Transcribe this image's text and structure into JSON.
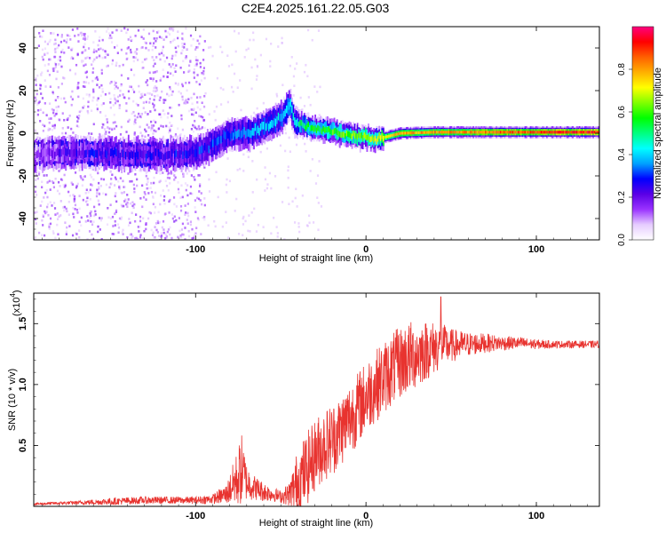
{
  "title": "C2E4.2025.161.22.05.G03",
  "chart_data": [
    {
      "type": "heatmap",
      "xlabel": "Height of straight line (km)",
      "ylabel": "Frequency (Hz)",
      "xlim": [
        -195,
        137
      ],
      "ylim": [
        -50,
        50
      ],
      "x_ticks": [
        -100,
        0,
        100
      ],
      "x_tick_labels": [
        "-100",
        "0",
        "100"
      ],
      "y_ticks": [
        -40,
        -20,
        0,
        20,
        40
      ],
      "y_tick_labels": [
        "-40",
        "-20",
        "0",
        "20",
        "40"
      ],
      "colorbar": {
        "label": "Normalized spectral amplitude",
        "range": [
          0,
          1
        ],
        "ticks": [
          0.0,
          0.2,
          0.4,
          0.6,
          0.8
        ],
        "tick_labels": [
          "0.0",
          "0.2",
          "0.4",
          "0.6",
          "0.8"
        ],
        "colormap": [
          "#ffffff",
          "#e6ccff",
          "#9a33ff",
          "#5a00e6",
          "#0000ff",
          "#00a0ff",
          "#00ffff",
          "#00ff80",
          "#00ff00",
          "#80ff00",
          "#ffff00",
          "#ffb000",
          "#ff6000",
          "#ff0000",
          "#ff0080"
        ]
      },
      "ridge": {
        "x": [
          -195,
          -180,
          -160,
          -140,
          -120,
          -100,
          -90,
          -80,
          -70,
          -60,
          -50,
          -45,
          -42,
          -38,
          -30,
          -20,
          -10,
          0,
          5,
          10,
          20,
          40,
          60,
          80,
          100,
          120,
          137
        ],
        "y": [
          -10,
          -9,
          -9,
          -10,
          -10,
          -9,
          -5,
          -1,
          0,
          3,
          7,
          14,
          5,
          4,
          2,
          1,
          -1,
          -2,
          -3,
          -2,
          0,
          0.5,
          0.5,
          0.5,
          0.5,
          0.5,
          0.5
        ],
        "amplitude": [
          0.15,
          0.2,
          0.25,
          0.25,
          0.25,
          0.28,
          0.3,
          0.32,
          0.35,
          0.38,
          0.4,
          0.42,
          0.45,
          0.5,
          0.55,
          0.6,
          0.62,
          0.65,
          0.68,
          0.7,
          0.78,
          0.8,
          0.82,
          0.85,
          0.88,
          0.9,
          0.92
        ]
      }
    },
    {
      "type": "line",
      "xlabel": "Height of straight line (km)",
      "ylabel": "SNR (10 * v/v)",
      "y_scale_label": "(x10",
      "y_scale_exponent": "4",
      "y_scale_suffix": ")",
      "xlim": [
        -195,
        137
      ],
      "ylim": [
        0,
        1.75
      ],
      "x_ticks": [
        -100,
        0,
        100
      ],
      "x_tick_labels": [
        "-100",
        "0",
        "100"
      ],
      "y_ticks": [
        0.5,
        1.0,
        1.5
      ],
      "y_tick_labels": [
        "0.5",
        "1.0",
        "1.5"
      ],
      "color": "#e8332f",
      "envelope": {
        "x": [
          -195,
          -170,
          -150,
          -130,
          -110,
          -100,
          -90,
          -82,
          -76,
          -73,
          -70,
          -65,
          -60,
          -55,
          -50,
          -45,
          -40,
          -35,
          -30,
          -25,
          -20,
          -15,
          -10,
          -5,
          0,
          5,
          10,
          15,
          20,
          25,
          30,
          35,
          40,
          45,
          50,
          60,
          70,
          80,
          90,
          100,
          110,
          120,
          137
        ],
        "mean": [
          0.02,
          0.03,
          0.04,
          0.05,
          0.05,
          0.05,
          0.06,
          0.1,
          0.22,
          0.3,
          0.2,
          0.15,
          0.12,
          0.1,
          0.08,
          0.1,
          0.2,
          0.3,
          0.42,
          0.5,
          0.55,
          0.62,
          0.72,
          0.8,
          0.9,
          0.98,
          1.05,
          1.12,
          1.18,
          1.22,
          1.25,
          1.28,
          1.3,
          1.32,
          1.32,
          1.33,
          1.34,
          1.34,
          1.34,
          1.33,
          1.33,
          1.33,
          1.33
        ],
        "spread": [
          0.01,
          0.015,
          0.03,
          0.03,
          0.03,
          0.03,
          0.04,
          0.08,
          0.22,
          0.3,
          0.15,
          0.1,
          0.08,
          0.06,
          0.05,
          0.1,
          0.28,
          0.3,
          0.3,
          0.3,
          0.3,
          0.3,
          0.3,
          0.3,
          0.3,
          0.3,
          0.3,
          0.3,
          0.3,
          0.3,
          0.28,
          0.25,
          0.22,
          0.18,
          0.14,
          0.1,
          0.08,
          0.06,
          0.05,
          0.04,
          0.03,
          0.03,
          0.03
        ]
      },
      "peak": {
        "x": 44,
        "y": 1.72
      }
    }
  ]
}
